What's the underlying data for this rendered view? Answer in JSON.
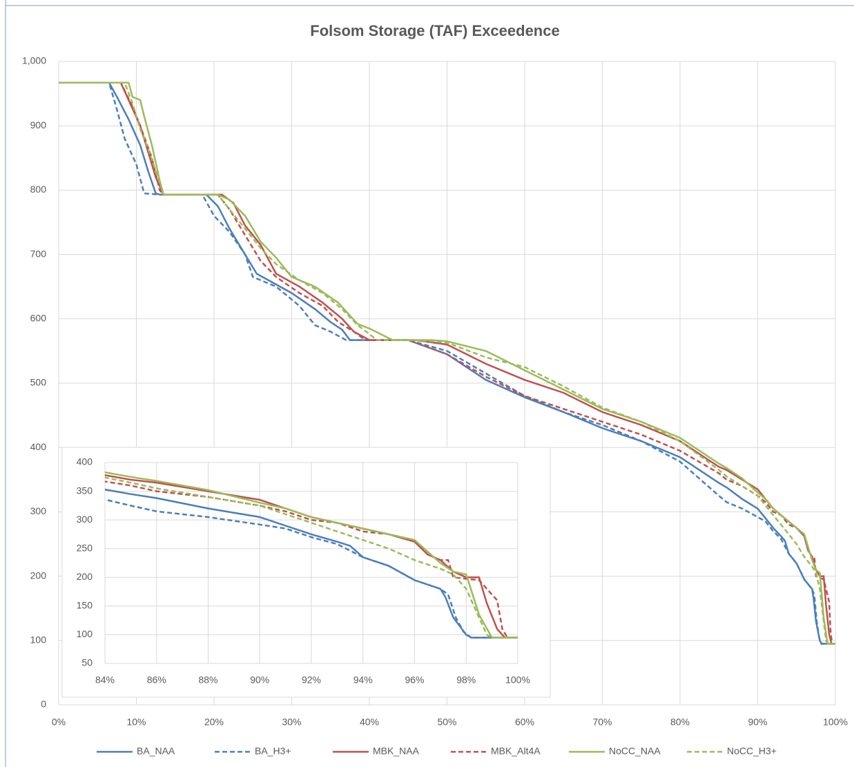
{
  "chart_data": {
    "type": "line",
    "title": "Folsom Storage (TAF) Exceedence",
    "xlim": [
      0,
      100
    ],
    "ylim": [
      0,
      1000
    ],
    "xticks": [
      {
        "value": 0,
        "label": "0%"
      },
      {
        "value": 10,
        "label": "10%"
      },
      {
        "value": 20,
        "label": "20%"
      },
      {
        "value": 30,
        "label": "30%"
      },
      {
        "value": 40,
        "label": "40%"
      },
      {
        "value": 50,
        "label": "50%"
      },
      {
        "value": 60,
        "label": "60%"
      },
      {
        "value": 70,
        "label": "70%"
      },
      {
        "value": 80,
        "label": "80%"
      },
      {
        "value": 90,
        "label": "90%"
      },
      {
        "value": 100,
        "label": "100%"
      }
    ],
    "yticks": [
      0,
      100,
      200,
      300,
      400,
      500,
      600,
      700,
      800,
      900,
      {
        "value": 1000,
        "label": "1,000"
      }
    ],
    "grid": true,
    "legend": "bottom",
    "series": [
      {
        "name": "BA_NAA",
        "color": "#4a7ebb",
        "dashed": false,
        "x": [
          0,
          6.5,
          7.5,
          9,
          10.5,
          11.5,
          12.5,
          13,
          19,
          20.5,
          22,
          24,
          25.5,
          27,
          30,
          33,
          35,
          36.5,
          37.5,
          45,
          50,
          55,
          60,
          65,
          70,
          75,
          80,
          85,
          86,
          88,
          90,
          91,
          92,
          93,
          93.5,
          94,
          95,
          96,
          97,
          97.2,
          97.5,
          98,
          98.2,
          100
        ],
        "values": [
          967,
          967,
          945,
          910,
          870,
          830,
          795,
          793,
          793,
          775,
          740,
          700,
          670,
          660,
          640,
          615,
          595,
          583,
          567,
          567,
          545,
          505,
          478,
          455,
          430,
          410,
          385,
          345,
          338,
          320,
          305,
          290,
          275,
          262,
          255,
          235,
          220,
          195,
          180,
          165,
          130,
          100,
          95,
          95
        ]
      },
      {
        "name": "BA_H3+",
        "color": "#4a7ebb",
        "dashed": true,
        "x": [
          0,
          6.5,
          7.5,
          8.5,
          10,
          11,
          13,
          18.5,
          20,
          22,
          24,
          25,
          28,
          31,
          33,
          35,
          37,
          45,
          50,
          55,
          60,
          65,
          70,
          75,
          80,
          85,
          86,
          88,
          90,
          91,
          92,
          93,
          94,
          95,
          96,
          97,
          97.3,
          97.6,
          97.9,
          98.2,
          100
        ],
        "values": [
          967,
          967,
          925,
          880,
          840,
          795,
          793,
          793,
          760,
          735,
          700,
          665,
          650,
          620,
          590,
          580,
          567,
          567,
          550,
          515,
          480,
          455,
          435,
          410,
          378,
          325,
          315,
          305,
          292,
          285,
          270,
          258,
          235,
          220,
          195,
          180,
          170,
          130,
          105,
          95,
          95
        ]
      },
      {
        "name": "MBK_NAA",
        "color": "#c0504d",
        "dashed": false,
        "x": [
          0,
          8,
          9,
          10.5,
          11.5,
          12.5,
          13.5,
          21,
          22.5,
          24,
          26,
          28,
          31,
          34,
          36.5,
          38,
          40,
          46,
          50,
          55,
          60,
          65,
          70,
          75,
          80,
          85,
          86,
          88,
          90,
          91,
          92,
          93,
          94,
          95,
          96,
          96.5,
          97,
          97.5,
          98,
          98.5,
          98.8,
          99.2,
          99.5,
          100
        ],
        "values": [
          967,
          967,
          940,
          900,
          860,
          820,
          793,
          793,
          780,
          745,
          715,
          670,
          650,
          625,
          600,
          580,
          567,
          567,
          560,
          530,
          505,
          485,
          455,
          435,
          410,
          370,
          365,
          350,
          335,
          320,
          305,
          295,
          285,
          275,
          262,
          240,
          230,
          210,
          200,
          200,
          155,
          110,
          95,
          95
        ]
      },
      {
        "name": "MBK_Alt4A",
        "color": "#c0504d",
        "dashed": true,
        "x": [
          0,
          8,
          9.5,
          10.5,
          12,
          13,
          13.5,
          20.5,
          22,
          24,
          26,
          28,
          31,
          34,
          36,
          38,
          39.5,
          45,
          50,
          55,
          60,
          65,
          70,
          75,
          80,
          85,
          86,
          88,
          90,
          91,
          92,
          93,
          94,
          95,
          96,
          96.5,
          97,
          97.3,
          97.5,
          98.5,
          99,
          99.2,
          99.4,
          99.6,
          100
        ],
        "values": [
          967,
          967,
          930,
          900,
          850,
          800,
          793,
          793,
          770,
          730,
          690,
          665,
          640,
          620,
          595,
          580,
          567,
          567,
          545,
          510,
          480,
          460,
          440,
          420,
          395,
          360,
          350,
          340,
          325,
          315,
          300,
          295,
          280,
          275,
          265,
          240,
          230,
          230,
          200,
          195,
          170,
          160,
          110,
          95,
          95
        ]
      },
      {
        "name": "NoCC_NAA",
        "color": "#9bbb59",
        "dashed": false,
        "x": [
          0,
          9,
          9.5,
          10.5,
          11,
          12,
          13,
          13.5,
          20.5,
          22,
          24,
          26,
          28,
          30,
          33,
          36,
          37.5,
          38.5,
          40,
          43,
          48,
          50,
          55,
          60,
          65,
          70,
          75,
          80,
          85,
          86,
          88,
          90,
          91,
          92,
          93,
          94,
          95,
          96,
          97,
          97.5,
          98,
          98.5,
          99,
          100
        ],
        "values": [
          967,
          967,
          945,
          940,
          915,
          870,
          815,
          793,
          793,
          785,
          760,
          720,
          695,
          665,
          650,
          625,
          605,
          592,
          585,
          567,
          567,
          565,
          550,
          520,
          490,
          460,
          440,
          415,
          375,
          368,
          352,
          330,
          320,
          305,
          295,
          285,
          275,
          265,
          225,
          210,
          205,
          135,
          95,
          95
        ]
      },
      {
        "name": "NoCC_H3+",
        "color": "#9bbb59",
        "dashed": true,
        "x": [
          0,
          8.5,
          9.5,
          10.5,
          11.5,
          12.5,
          13.5,
          20.5,
          22,
          24,
          26,
          28,
          31,
          34,
          36.5,
          38.5,
          41,
          46,
          50,
          55,
          60,
          65,
          70,
          75,
          80,
          85,
          86,
          88,
          90,
          91,
          92,
          93,
          94,
          95,
          96,
          97,
          97.5,
          98,
          98.5,
          98.8,
          99,
          100
        ],
        "values": [
          967,
          967,
          935,
          895,
          865,
          830,
          793,
          793,
          770,
          740,
          710,
          685,
          660,
          640,
          615,
          590,
          567,
          567,
          563,
          540,
          525,
          495,
          462,
          440,
          410,
          365,
          355,
          340,
          325,
          310,
          295,
          280,
          265,
          250,
          230,
          215,
          205,
          180,
          130,
          100,
          95,
          95
        ]
      }
    ],
    "inset": {
      "xlim": [
        84,
        100
      ],
      "ylim": [
        50,
        400
      ],
      "xticks": [
        {
          "value": 84,
          "label": "84%"
        },
        {
          "value": 86,
          "label": "86%"
        },
        {
          "value": 88,
          "label": "88%"
        },
        {
          "value": 90,
          "label": "90%"
        },
        {
          "value": 92,
          "label": "92%"
        },
        {
          "value": 94,
          "label": "94%"
        },
        {
          "value": 96,
          "label": "96%"
        },
        {
          "value": 98,
          "label": "98%"
        },
        {
          "value": 100,
          "label": "100%"
        }
      ],
      "yticks": [
        50,
        100,
        150,
        200,
        250,
        300,
        350,
        400
      ]
    }
  }
}
